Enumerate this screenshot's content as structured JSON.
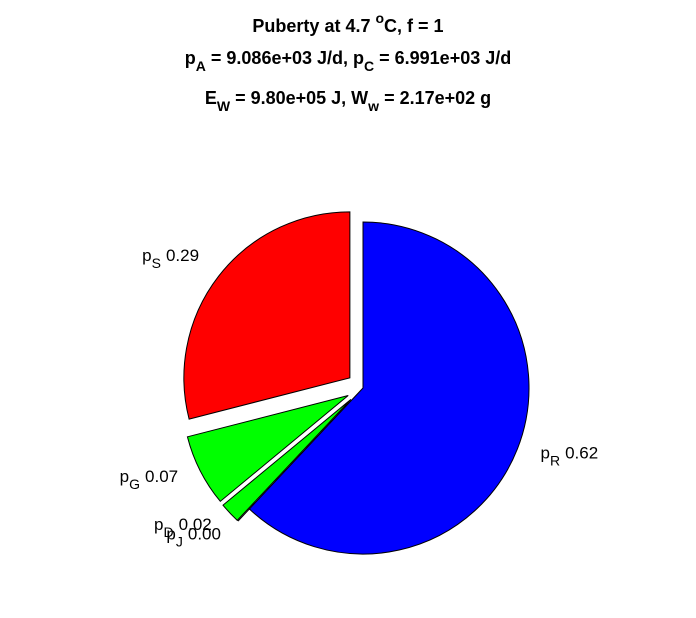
{
  "chart_data": {
    "type": "pie",
    "title": [
      [
        "Puberty at 4.7 ",
        {
          "sup": "o"
        },
        "C, f = 1"
      ],
      [
        "p",
        {
          "sub": "A"
        },
        " = 9.086e+03 J/d,  p",
        {
          "sub": "C"
        },
        " = 6.991e+03 J/d"
      ],
      [
        "E",
        {
          "sub": "W"
        },
        " = 9.80e+05 J, W",
        {
          "sub": "w"
        },
        " = 2.17e+02 g"
      ]
    ],
    "label_symbol": "p",
    "categories": [
      "S",
      "G",
      "D",
      "J",
      "R"
    ],
    "values": [
      0.29,
      0.07,
      0.02,
      0.0,
      0.62
    ],
    "value_labels": [
      "0.29",
      "0.07",
      "0.02",
      "0.00",
      "0.62"
    ],
    "colors": [
      "#ff0000",
      "#00ff00",
      "#00ff00",
      "#ff00ff",
      "#0000ff"
    ],
    "explode": [
      true,
      true,
      true,
      true,
      false
    ]
  }
}
